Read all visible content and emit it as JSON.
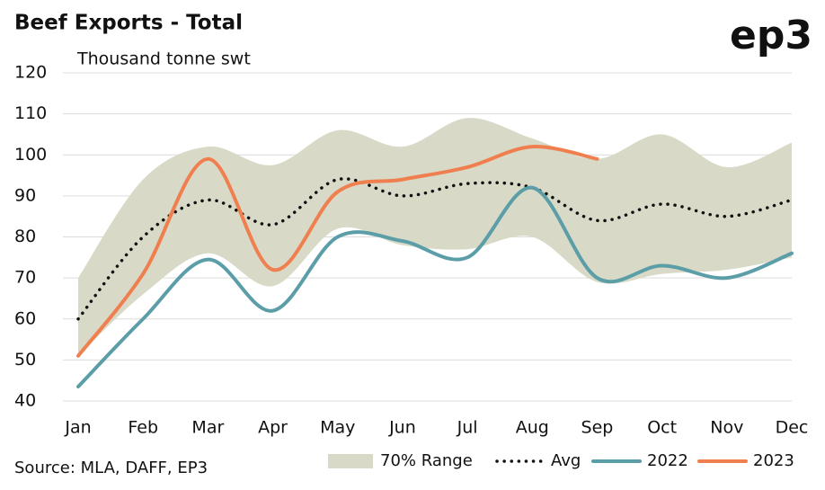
{
  "chart_data": {
    "type": "line",
    "title": "Beef Exports - Total",
    "subtitle": "Thousand tonne swt",
    "logo": "ep3",
    "source": "Source: MLA, DAFF, EP3",
    "categories": [
      "Jan",
      "Feb",
      "Mar",
      "Apr",
      "May",
      "Jun",
      "Jul",
      "Aug",
      "Sep",
      "Oct",
      "Nov",
      "Dec"
    ],
    "ylim": [
      40,
      120
    ],
    "yticks": [
      40,
      50,
      60,
      70,
      80,
      90,
      100,
      110,
      120
    ],
    "grid": true,
    "range": {
      "name": "70% Range",
      "color": "#d8d9c6",
      "lower": [
        51,
        66,
        76,
        68,
        82,
        78,
        77,
        80,
        69,
        71,
        72,
        75
      ],
      "upper": [
        70,
        94,
        102,
        97.5,
        106,
        102,
        109,
        104,
        99,
        105,
        97,
        103
      ]
    },
    "series": [
      {
        "name": "Avg",
        "color": "#111111",
        "style": "dotted",
        "values": [
          60,
          80,
          89,
          83,
          94,
          90,
          93,
          92,
          84,
          88,
          85,
          89
        ]
      },
      {
        "name": "2022",
        "color": "#5b9ea8",
        "style": "solid",
        "values": [
          43.5,
          60,
          74.5,
          62,
          80,
          79,
          75,
          92,
          70,
          73,
          70,
          76
        ]
      },
      {
        "name": "2023",
        "color": "#f07f4f",
        "style": "solid",
        "values": [
          51,
          71,
          99,
          72,
          91,
          94,
          97,
          102,
          99,
          null,
          null,
          null
        ]
      }
    ]
  }
}
